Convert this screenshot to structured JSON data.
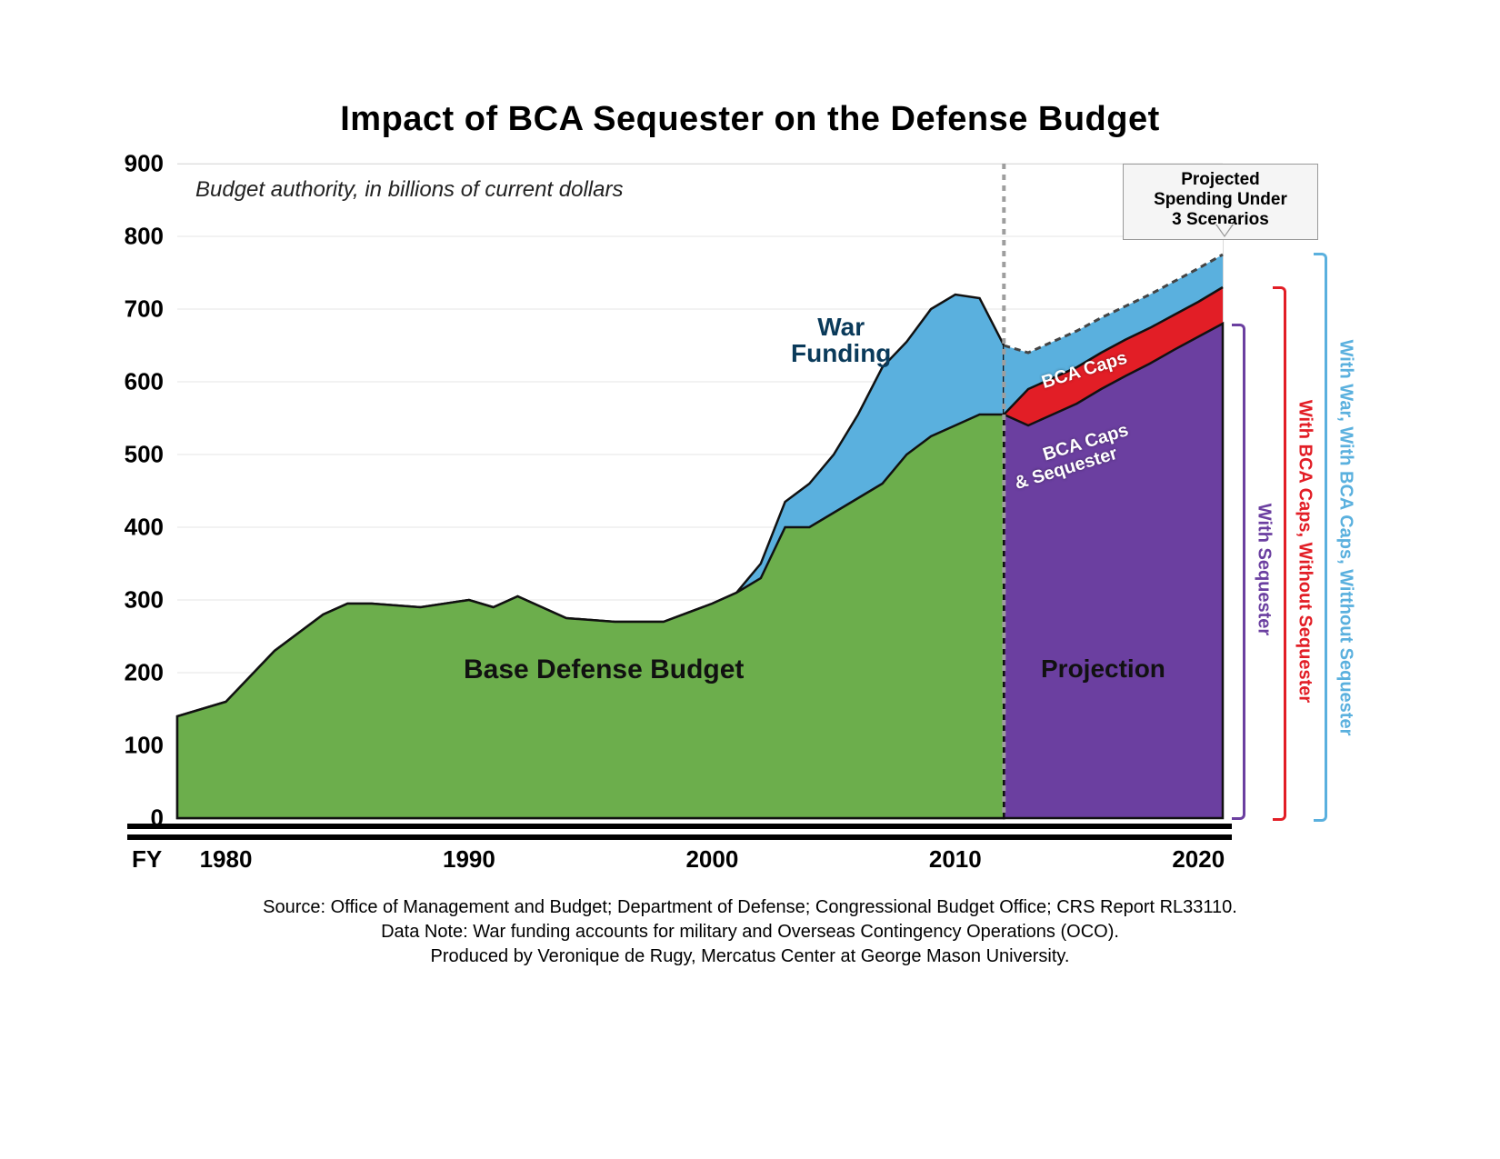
{
  "chart": {
    "type": "area",
    "title": "Impact of BCA Sequester on the Defense Budget",
    "subtitle": "Budget authority, in billions of current dollars",
    "fy_label": "FY",
    "x_ticks": [
      1980,
      1990,
      2000,
      2010,
      2020
    ],
    "x_min": 1978,
    "x_max": 2021,
    "y_ticks": [
      0,
      100,
      200,
      300,
      400,
      500,
      600,
      700,
      800,
      900
    ],
    "y_min": 0,
    "y_max": 900,
    "grid_color": "#e4e4e4",
    "background_color": "#ffffff",
    "divider_year": 2012,
    "divider_color": "#9e9e9e",
    "colors": {
      "base": "#6cae4c",
      "war": "#5ab0de",
      "bca_caps": "#e21e26",
      "bca_sequester": "#6b3fa0"
    },
    "years": [
      1978,
      1980,
      1982,
      1984,
      1985,
      1986,
      1988,
      1990,
      1991,
      1992,
      1994,
      1996,
      1998,
      2000,
      2001,
      2002,
      2003,
      2004,
      2005,
      2006,
      2007,
      2008,
      2009,
      2010,
      2011,
      2012
    ],
    "base_defense": [
      140,
      160,
      230,
      280,
      295,
      295,
      290,
      300,
      290,
      305,
      275,
      270,
      270,
      295,
      310,
      330,
      400,
      400,
      420,
      440,
      460,
      500,
      525,
      540,
      555,
      555
    ],
    "war_funding_top": [
      140,
      160,
      230,
      280,
      295,
      295,
      290,
      300,
      290,
      305,
      275,
      270,
      270,
      295,
      310,
      350,
      435,
      460,
      500,
      555,
      620,
      655,
      700,
      720,
      715,
      650
    ],
    "proj_years": [
      2012,
      2013,
      2014,
      2015,
      2016,
      2017,
      2018,
      2019,
      2020,
      2021
    ],
    "proj_sequester": [
      555,
      540,
      555,
      570,
      590,
      608,
      625,
      644,
      662,
      680
    ],
    "proj_bca_caps": [
      555,
      590,
      605,
      620,
      640,
      658,
      674,
      692,
      710,
      730
    ],
    "proj_with_war": [
      650,
      640,
      655,
      670,
      688,
      704,
      720,
      738,
      756,
      775
    ],
    "callout": {
      "line1": "Projected",
      "line2": "Spending Under",
      "line3": "3 Scenarios"
    },
    "labels": {
      "base": "Base Defense Budget",
      "war": "War\nFunding",
      "bca_caps_area": "BCA Caps",
      "bca_seq_area": "BCA Caps\n& Sequester",
      "projection": "Projection"
    },
    "brackets": {
      "sequester": {
        "label": "With Sequester",
        "color": "#6b3fa0"
      },
      "bca": {
        "label": "With BCA Caps, Without  Sequester",
        "color": "#e21e26"
      },
      "war": {
        "label": "With  War,  With BCA Caps,  Witthout Sequester",
        "color": "#5ab0de"
      }
    },
    "source": {
      "line1": "Source: Office of Management and Budget; Department of Defense; Congressional Budget Office; CRS Report RL33110.",
      "line2": "Data Note: War funding accounts for military and Overseas Contingency Operations (OCO).",
      "line3": "Produced by Veronique de Rugy, Mercatus Center at George Mason University."
    }
  }
}
